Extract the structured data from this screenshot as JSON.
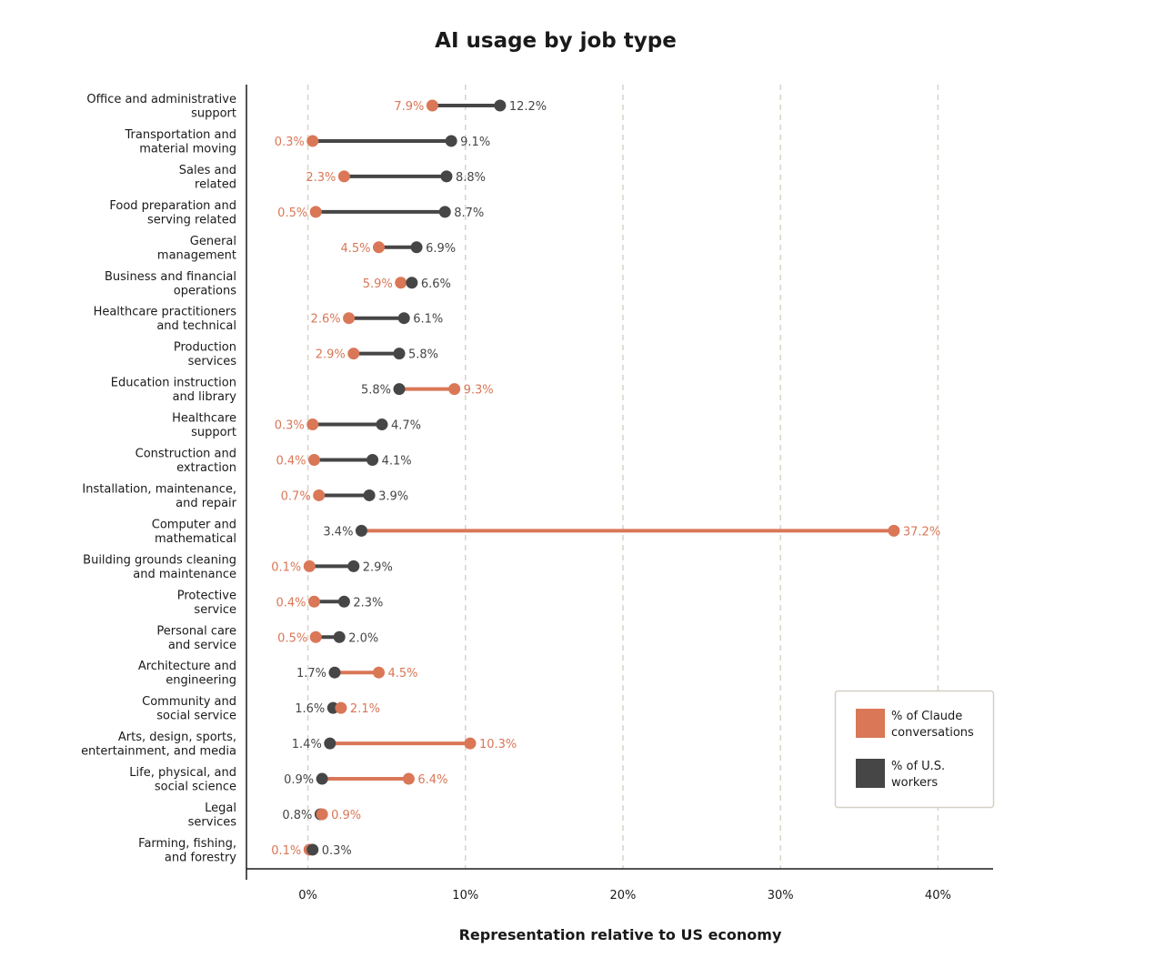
{
  "colors": {
    "claude": "#d97757",
    "workers": "#464646",
    "grid": "#d9d3c7",
    "axis": "#1a1a1a",
    "legend_border": "#d4d0c4"
  },
  "chart_data": {
    "type": "dumbbell",
    "title": "AI usage by job type",
    "xlabel": "Representation relative to US economy",
    "ylabel": "",
    "xlim": [
      -3.9,
      43.5
    ],
    "xticks": [
      0,
      10,
      20,
      30,
      40
    ],
    "xtick_labels": [
      "0%",
      "10%",
      "20%",
      "30%",
      "40%"
    ],
    "grid": "vertical dashed",
    "legend_position": "bottom-right",
    "series": [
      {
        "name": "% of Claude conversations",
        "color_key": "claude"
      },
      {
        "name": "% of U.S. workers",
        "color_key": "workers"
      }
    ],
    "categories": [
      {
        "lines": [
          "Office and administrative",
          "support"
        ],
        "claude": 7.9,
        "workers": 12.2,
        "claude_label": "7.9%",
        "workers_label": "12.2%"
      },
      {
        "lines": [
          "Transportation and",
          "material moving"
        ],
        "claude": 0.3,
        "workers": 9.1,
        "claude_label": "0.3%",
        "workers_label": "9.1%"
      },
      {
        "lines": [
          "Sales and",
          "related"
        ],
        "claude": 2.3,
        "workers": 8.8,
        "claude_label": "2.3%",
        "workers_label": "8.8%"
      },
      {
        "lines": [
          "Food preparation and",
          "serving related"
        ],
        "claude": 0.5,
        "workers": 8.7,
        "claude_label": "0.5%",
        "workers_label": "8.7%"
      },
      {
        "lines": [
          "General",
          "management"
        ],
        "claude": 4.5,
        "workers": 6.9,
        "claude_label": "4.5%",
        "workers_label": "6.9%"
      },
      {
        "lines": [
          "Business and financial",
          "operations"
        ],
        "claude": 5.9,
        "workers": 6.6,
        "claude_label": "5.9%",
        "workers_label": "6.6%"
      },
      {
        "lines": [
          "Healthcare practitioners",
          "and technical"
        ],
        "claude": 2.6,
        "workers": 6.1,
        "claude_label": "2.6%",
        "workers_label": "6.1%"
      },
      {
        "lines": [
          "Production",
          "services"
        ],
        "claude": 2.9,
        "workers": 5.8,
        "claude_label": "2.9%",
        "workers_label": "5.8%"
      },
      {
        "lines": [
          "Education instruction",
          "and library"
        ],
        "claude": 9.3,
        "workers": 5.8,
        "claude_label": "9.3%",
        "workers_label": "5.8%"
      },
      {
        "lines": [
          "Healthcare",
          "support"
        ],
        "claude": 0.3,
        "workers": 4.7,
        "claude_label": "0.3%",
        "workers_label": "4.7%"
      },
      {
        "lines": [
          "Construction and",
          "extraction"
        ],
        "claude": 0.4,
        "workers": 4.1,
        "claude_label": "0.4%",
        "workers_label": "4.1%"
      },
      {
        "lines": [
          "Installation, maintenance,",
          "and repair"
        ],
        "claude": 0.7,
        "workers": 3.9,
        "claude_label": "0.7%",
        "workers_label": "3.9%"
      },
      {
        "lines": [
          "Computer and",
          "mathematical"
        ],
        "claude": 37.2,
        "workers": 3.4,
        "claude_label": "37.2%",
        "workers_label": "3.4%"
      },
      {
        "lines": [
          "Building grounds cleaning",
          "and maintenance"
        ],
        "claude": 0.1,
        "workers": 2.9,
        "claude_label": "0.1%",
        "workers_label": "2.9%"
      },
      {
        "lines": [
          "Protective",
          "service"
        ],
        "claude": 0.4,
        "workers": 2.3,
        "claude_label": "0.4%",
        "workers_label": "2.3%"
      },
      {
        "lines": [
          "Personal care",
          "and service"
        ],
        "claude": 0.5,
        "workers": 2.0,
        "claude_label": "0.5%",
        "workers_label": "2.0%"
      },
      {
        "lines": [
          "Architecture and",
          "engineering"
        ],
        "claude": 4.5,
        "workers": 1.7,
        "claude_label": "4.5%",
        "workers_label": "1.7%"
      },
      {
        "lines": [
          "Community and",
          "social service"
        ],
        "claude": 2.1,
        "workers": 1.6,
        "claude_label": "2.1%",
        "workers_label": "1.6%"
      },
      {
        "lines": [
          "Arts, design, sports,",
          "entertainment, and media"
        ],
        "claude": 10.3,
        "workers": 1.4,
        "claude_label": "10.3%",
        "workers_label": "1.4%"
      },
      {
        "lines": [
          "Life, physical, and",
          "social science"
        ],
        "claude": 6.4,
        "workers": 0.9,
        "claude_label": "6.4%",
        "workers_label": "0.9%"
      },
      {
        "lines": [
          "Legal",
          "services"
        ],
        "claude": 0.9,
        "workers": 0.8,
        "claude_label": "0.9%",
        "workers_label": "0.8%"
      },
      {
        "lines": [
          "Farming, fishing,",
          "and forestry"
        ],
        "claude": 0.1,
        "workers": 0.3,
        "claude_label": "0.1%",
        "workers_label": "0.3%"
      }
    ],
    "legend": [
      {
        "lines": [
          "% of Claude",
          "conversations"
        ],
        "color_key": "claude"
      },
      {
        "lines": [
          "% of U.S.",
          "workers"
        ],
        "color_key": "workers"
      }
    ]
  }
}
